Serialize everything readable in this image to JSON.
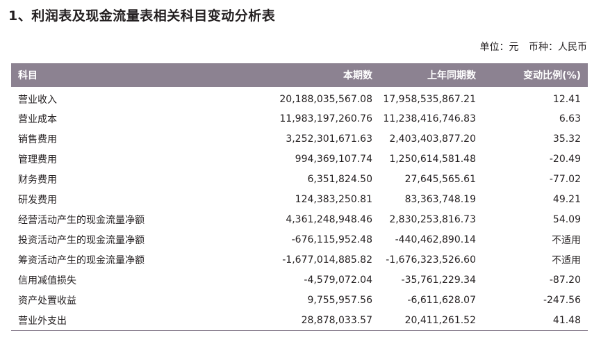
{
  "heading": "1、利润表及现金流量表相关科目变动分析表",
  "unit": {
    "unit_label": "单位：元",
    "currency_label": "币种：人民币"
  },
  "table": {
    "headers": [
      "科目",
      "本期数",
      "上年同期数",
      "变动比例(%)"
    ],
    "rows": [
      [
        "营业收入",
        "20,188,035,567.08",
        "17,958,535,867.21",
        "12.41"
      ],
      [
        "营业成本",
        "11,983,197,260.76",
        "11,238,416,746.83",
        "6.63"
      ],
      [
        "销售费用",
        "3,252,301,671.63",
        "2,403,403,877.20",
        "35.32"
      ],
      [
        "管理费用",
        "994,369,107.74",
        "1,250,614,581.48",
        "-20.49"
      ],
      [
        "财务费用",
        "6,351,824.50",
        "27,645,565.61",
        "-77.02"
      ],
      [
        "研发费用",
        "124,383,250.81",
        "83,363,748.19",
        "49.21"
      ],
      [
        "经营活动产生的现金流量净额",
        "4,361,248,948.46",
        "2,830,253,816.73",
        "54.09"
      ],
      [
        "投资活动产生的现金流量净额",
        "-676,115,952.48",
        "-440,462,890.14",
        "不适用"
      ],
      [
        "筹资活动产生的现金流量净额",
        "-1,677,014,885.82",
        "-1,676,323,526.60",
        "不适用"
      ],
      [
        "信用减值损失",
        "-4,579,072.04",
        "-35,761,229.34",
        "-87.20"
      ],
      [
        "资产处置收益",
        "9,755,957.56",
        "-6,611,628.07",
        "-247.56"
      ],
      [
        "营业外支出",
        "28,878,033.57",
        "20,411,261.52",
        "41.48"
      ]
    ]
  },
  "colors": {
    "header_bg": "#8c8291",
    "header_text": "#ffffff",
    "text": "#231f20"
  }
}
